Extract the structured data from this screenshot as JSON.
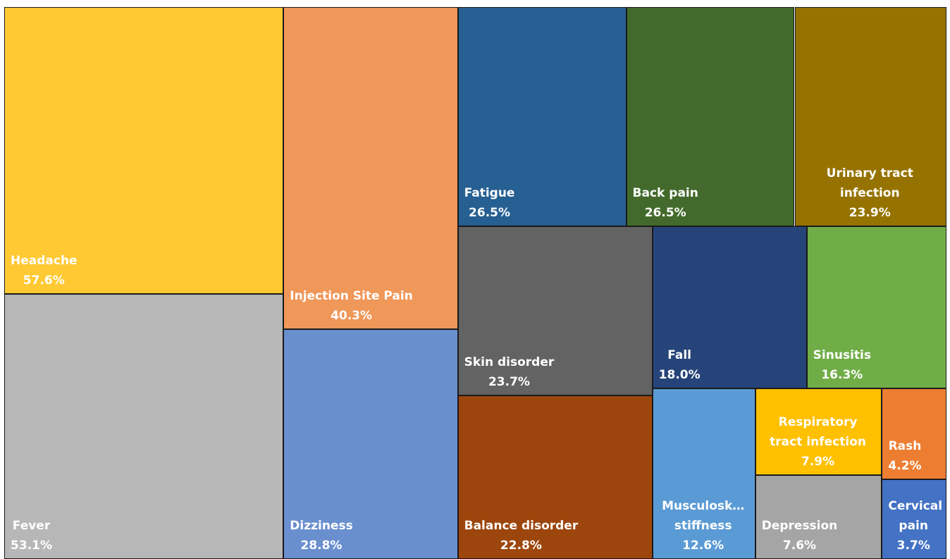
{
  "chart_data": {
    "type": "treemap",
    "categories": [
      "Headache",
      "Fever",
      "Injection Site Pain",
      "Dizziness",
      "Fatigue",
      "Back pain",
      "Urinary tract infection",
      "Skin disorder",
      "Balance disorder",
      "Fall",
      "Sinusitis",
      "Musculosk… stiffness",
      "Respiratory tract infection",
      "Depression",
      "Rash",
      "Cervical pain"
    ],
    "values": [
      57.6,
      53.1,
      40.3,
      28.8,
      26.5,
      26.5,
      23.9,
      23.7,
      22.8,
      18.0,
      16.3,
      12.6,
      7.9,
      7.6,
      4.2,
      3.7
    ],
    "value_labels": [
      "57.6%",
      "53.1%",
      "40.3%",
      "28.8%",
      "26.5%",
      "26.5%",
      "23.9%",
      "23.7%",
      "22.8%",
      "18.0%",
      "16.3%",
      "12.6%",
      "7.9%",
      "7.6%",
      "4.2%",
      "3.7%"
    ],
    "colors": [
      "#ffc933",
      "#b7b7b7",
      "#f0975a",
      "#6a8fcf",
      "#265f91",
      "#436a2c",
      "#967300",
      "#636363",
      "#9c460d",
      "#264479",
      "#70ad47",
      "#5b9bd5",
      "#ffc000",
      "#a5a5a5",
      "#ed7d31",
      "#4472c4"
    ]
  }
}
